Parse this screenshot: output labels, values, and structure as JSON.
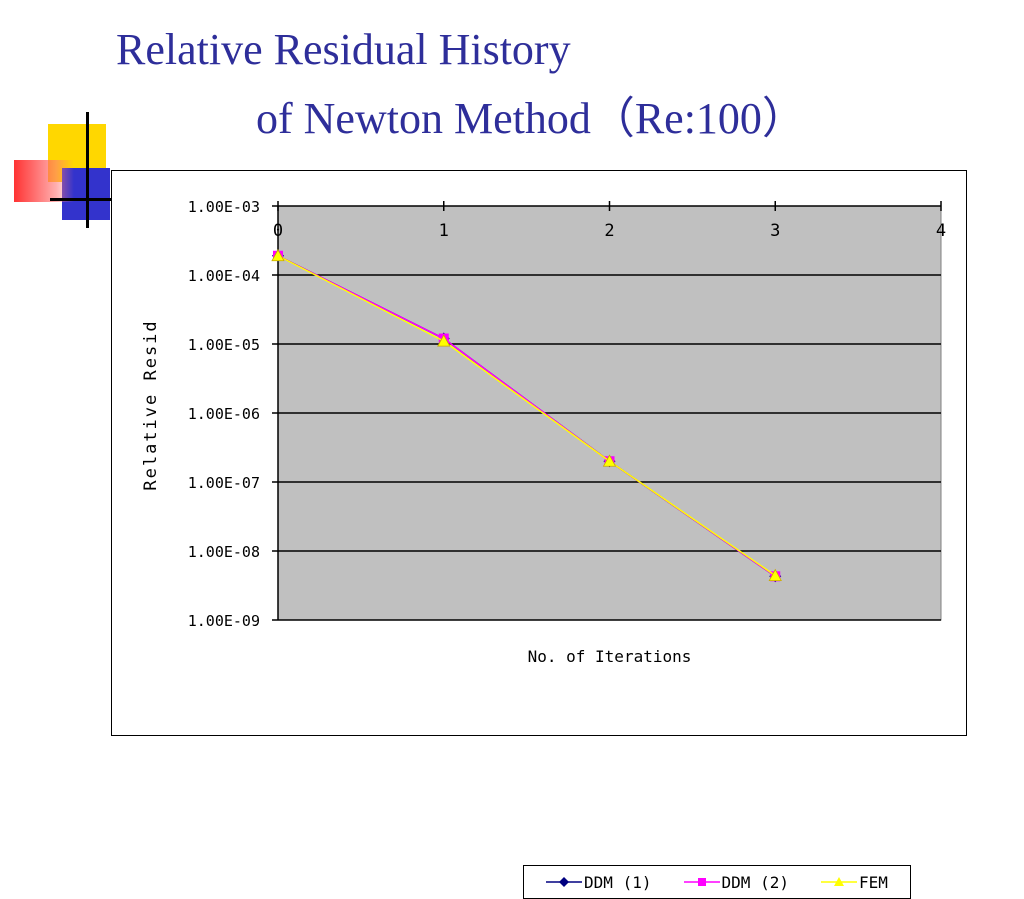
{
  "slide": {
    "title_line1": "Relative Residual History",
    "title_line2": "of Newton Method（Re:100）",
    "title_color": "#2e2e9a"
  },
  "colors": {
    "plot_background": "#c0c0c0",
    "gridline": "#000000",
    "deco_yellow": "#ffd700",
    "deco_blue": "#3333cc",
    "deco_red": "#ff3333"
  },
  "chart_data": {
    "type": "line",
    "xlabel": "No. of Iterations",
    "ylabel": "Relative Resid",
    "x_ticks": [
      "0",
      "1",
      "2",
      "3",
      "4"
    ],
    "y_ticks": [
      "1.00E-03",
      "1.00E-04",
      "1.00E-05",
      "1.00E-06",
      "1.00E-07",
      "1.00E-08",
      "1.00E-09"
    ],
    "xlim": [
      0,
      4
    ],
    "ylim": [
      1e-09,
      0.001
    ],
    "y_scale": "log",
    "x_axis_position": "top",
    "grid": true,
    "legend_placement": "bottom-center",
    "x": [
      0,
      1,
      2,
      3
    ],
    "series": [
      {
        "name": "DDM (1)",
        "values": [
          0.00019,
          1.2e-05,
          2e-07,
          4.3e-09
        ],
        "color": "#000080",
        "marker": "diamond"
      },
      {
        "name": "DDM (2)",
        "values": [
          0.00019,
          1.2e-05,
          2e-07,
          4.3e-09
        ],
        "color": "#ff00ff",
        "marker": "square"
      },
      {
        "name": "FEM",
        "values": [
          0.00019,
          1.1e-05,
          2e-07,
          4.4e-09
        ],
        "color": "#ffff00",
        "marker": "triangle"
      }
    ]
  }
}
